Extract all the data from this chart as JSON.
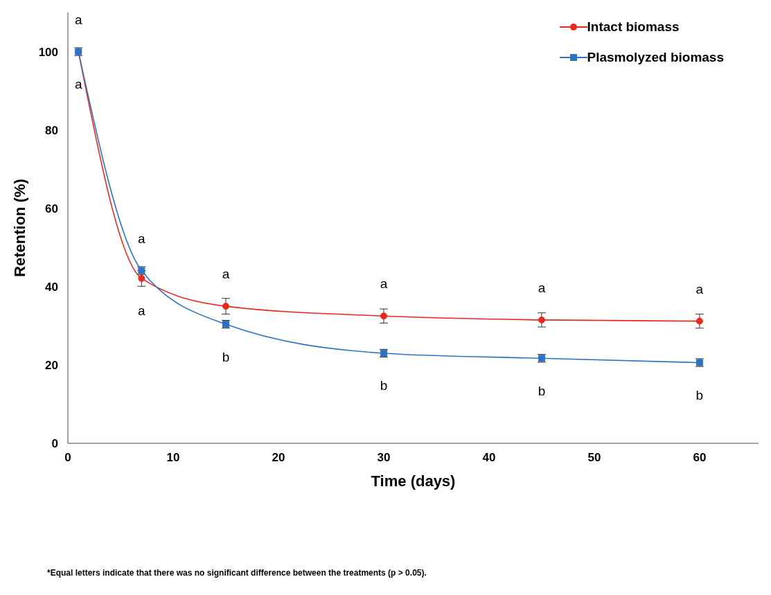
{
  "chart_data": {
    "type": "line",
    "xlabel": "Time (days)",
    "ylabel": "Retention (%)",
    "x": [
      1,
      7,
      15,
      30,
      45,
      60
    ],
    "series": [
      {
        "name": "Intact biomass",
        "color": "#e8281e",
        "marker": "circle",
        "values": [
          100,
          42.1,
          35.0,
          32.5,
          31.5,
          31.2
        ],
        "errors": [
          null,
          2,
          2,
          1.8,
          1.8,
          1.8
        ]
      },
      {
        "name": "Plasmolyzed biomass",
        "color": "#2f72c4",
        "marker": "square",
        "values": [
          100,
          44.1,
          30.4,
          23.0,
          21.7,
          20.6
        ],
        "errors": [
          1,
          1,
          1,
          1,
          1,
          1
        ]
      }
    ],
    "xlim": [
      0,
      65.6
    ],
    "xticks": [
      0,
      10,
      20,
      30,
      40,
      50,
      60
    ],
    "ylim": [
      0,
      110
    ],
    "yticks": [
      0,
      20,
      40,
      60,
      80,
      100
    ],
    "grid": false,
    "legend": "top right",
    "line_style": "solid",
    "annotations": [
      {
        "text": "a",
        "x": 1,
        "y": 100
      },
      {
        "text": "a",
        "x": 1,
        "y": 100
      },
      {
        "text": "a",
        "x": 7,
        "y": 44.1
      },
      {
        "text": "a",
        "x": 7,
        "y": 42.1
      },
      {
        "text": "a",
        "x": 15,
        "y": 35.0
      },
      {
        "text": "b",
        "x": 15,
        "y": 30.4
      },
      {
        "text": "a",
        "x": 30,
        "y": 32.5
      },
      {
        "text": "b",
        "x": 30,
        "y": 23.0
      },
      {
        "text": "a",
        "x": 45,
        "y": 31.5
      },
      {
        "text": "b",
        "x": 45,
        "y": 21.7
      },
      {
        "text": "a",
        "x": 60,
        "y": 31.2
      },
      {
        "text": "b",
        "x": 60,
        "y": 20.6
      },
      "*Equal letters indicate that there was no significant difference between the treatments (p > 0.05)."
    ]
  }
}
